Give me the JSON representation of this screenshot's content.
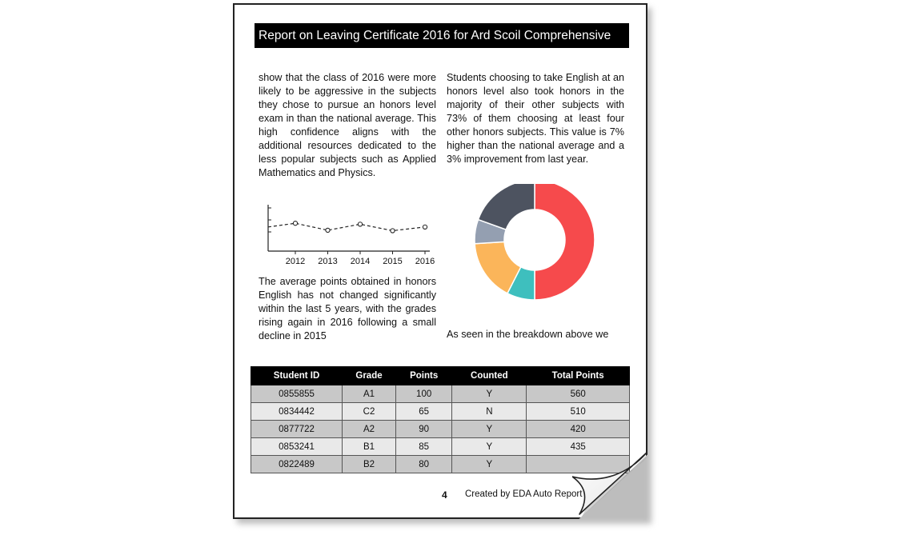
{
  "report": {
    "title": "Report on Leaving Certificate 2016 for Ard Scoil Comprehensive",
    "paragraphs": {
      "left_top": "show that the class of 2016 were more likely to be aggressive in the subjects they chose to pursue an honors level exam in than the national average. This high confidence aligns with the additional resources dedicated to the less popular subjects such as Applied Mathematics and Physics.",
      "right_top": "Students choosing to take English at an honors level also took honors in the majority of their other subjects with 73% of them choosing at least four other honors subjects. This value is 7% higher than the national average and a 3% improvement from last year.",
      "left_bottom": "The average points obtained in honors English has not changed significantly within the last 5 years, with the grades rising again in 2016 following a small decline in 2015",
      "right_bottom": "As seen in the breakdown above we"
    },
    "table": {
      "headers": [
        "Student ID",
        "Grade",
        "Points",
        "Counted",
        "Total Points"
      ],
      "rows": [
        [
          "0855855",
          "A1",
          "100",
          "Y",
          "560"
        ],
        [
          "0834442",
          "C2",
          "65",
          "N",
          "510"
        ],
        [
          "0877722",
          "A2",
          "90",
          "Y",
          "420"
        ],
        [
          "0853241",
          "B1",
          "85",
          "Y",
          "435"
        ],
        [
          "0822489",
          "B2",
          "80",
          "Y",
          ""
        ]
      ]
    },
    "footer": {
      "page_number": "4",
      "text": "Created by EDA Auto Report"
    }
  },
  "chart_data": [
    {
      "type": "line",
      "x": [
        "2012",
        "2013",
        "2014",
        "2015",
        "2016"
      ],
      "series": [
        {
          "values": [
            0.6,
            0.45,
            0.58,
            0.44,
            0.52
          ],
          "color": "#222222"
        }
      ],
      "ylim": [
        0,
        1
      ],
      "grid": false,
      "line_style": "dashed"
    },
    {
      "type": "pie",
      "donut": true,
      "values": [
        50,
        7.5,
        16.5,
        6.5,
        19.5
      ],
      "colors": [
        "#f64a4c",
        "#3ebfbe",
        "#fbb55a",
        "#949fb1",
        "#4d5360"
      ]
    }
  ]
}
